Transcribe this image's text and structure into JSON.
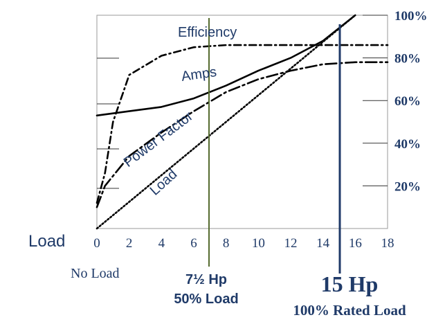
{
  "chart_data": {
    "type": "line",
    "x": [
      0,
      2,
      4,
      6,
      8,
      10,
      12,
      14,
      16,
      18
    ],
    "xtick_labels": [
      "0",
      "2",
      "4",
      "6",
      "8",
      "10",
      "12",
      "14",
      "16",
      "18"
    ],
    "xlim": [
      0,
      18
    ],
    "ylim": [
      0,
      100
    ],
    "xlabel": "Load",
    "y_right_ticks": [
      {
        "value": 20,
        "label": "20%"
      },
      {
        "value": 40,
        "label": "40%"
      },
      {
        "value": 60,
        "label": "60%"
      },
      {
        "value": 80,
        "label": "80%"
      },
      {
        "value": 100,
        "label": "100%"
      }
    ],
    "series": [
      {
        "name": "Efficiency",
        "style": "dash-dot",
        "color": "#000000",
        "points": [
          [
            0,
            12
          ],
          [
            0.5,
            26
          ],
          [
            1,
            50
          ],
          [
            2,
            72
          ],
          [
            4,
            81
          ],
          [
            6,
            85
          ],
          [
            8,
            86
          ],
          [
            10,
            86
          ],
          [
            12,
            86
          ],
          [
            14,
            86
          ],
          [
            18,
            86
          ]
        ]
      },
      {
        "name": "Amps",
        "style": "solid",
        "color": "#000000",
        "points": [
          [
            0,
            53
          ],
          [
            2,
            55
          ],
          [
            4,
            57
          ],
          [
            6,
            61
          ],
          [
            8,
            67
          ],
          [
            10,
            74
          ],
          [
            12,
            80
          ],
          [
            14,
            88
          ],
          [
            15,
            94
          ],
          [
            16,
            100
          ]
        ]
      },
      {
        "name": "Power Factor",
        "style": "long-dash-dot",
        "color": "#000000",
        "points": [
          [
            0,
            10
          ],
          [
            0.5,
            20
          ],
          [
            2,
            34
          ],
          [
            4,
            45
          ],
          [
            6,
            55
          ],
          [
            8,
            64
          ],
          [
            10,
            70
          ],
          [
            12,
            74
          ],
          [
            14,
            77
          ],
          [
            16,
            78
          ],
          [
            18,
            78
          ]
        ]
      },
      {
        "name": "Load",
        "style": "dotted",
        "color": "#000000",
        "points": [
          [
            0,
            0
          ],
          [
            16,
            100
          ]
        ]
      }
    ],
    "reference_lines": [
      {
        "x": 7,
        "color": "#556b2f",
        "label_lines": [
          "7½ Hp",
          "50%  Load"
        ]
      },
      {
        "x": 15,
        "color": "#1f3a68",
        "label_lines": [
          "15 Hp",
          "100% Rated Load"
        ]
      }
    ],
    "annotations": {
      "no_load": "No Load"
    },
    "colors": {
      "label_blue": "#1f3a68",
      "axis_text": "#1f3a68"
    }
  }
}
